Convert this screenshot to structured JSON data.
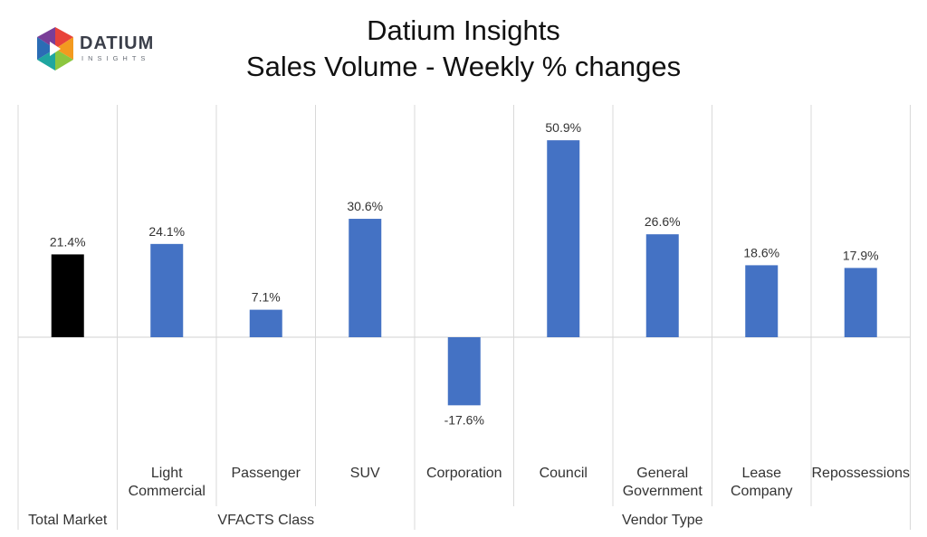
{
  "logo": {
    "wordmark": "DATIUM",
    "subtext": "INSIGHTS"
  },
  "chart_data": {
    "type": "bar",
    "title": "Datium Insights",
    "subtitle": "Sales Volume - Weekly % changes",
    "categories": [
      [
        "Total Market"
      ],
      [
        "Light",
        "Commercial"
      ],
      [
        "Passenger"
      ],
      [
        "SUV"
      ],
      [
        "Corporation"
      ],
      [
        "Council"
      ],
      [
        "General",
        "Government"
      ],
      [
        "Lease",
        "Company"
      ],
      [
        "Repossessions"
      ]
    ],
    "values": [
      21.4,
      24.1,
      7.1,
      30.6,
      -17.6,
      50.9,
      26.6,
      18.6,
      17.9
    ],
    "data_labels": [
      "21.4%",
      "24.1%",
      "7.1%",
      "30.6%",
      "-17.6%",
      "50.9%",
      "26.6%",
      "18.6%",
      "17.9%"
    ],
    "colors": [
      "#000000",
      "#4472c4",
      "#4472c4",
      "#4472c4",
      "#4472c4",
      "#4472c4",
      "#4472c4",
      "#4472c4",
      "#4472c4"
    ],
    "groups": [
      {
        "label": "Total Market",
        "start": 0,
        "end": 0
      },
      {
        "label": "VFACTS Class",
        "start": 1,
        "end": 3
      },
      {
        "label": "Vendor Type",
        "start": 4,
        "end": 8
      }
    ],
    "ylim": [
      -30,
      60
    ],
    "grid": false,
    "legend": "none"
  }
}
